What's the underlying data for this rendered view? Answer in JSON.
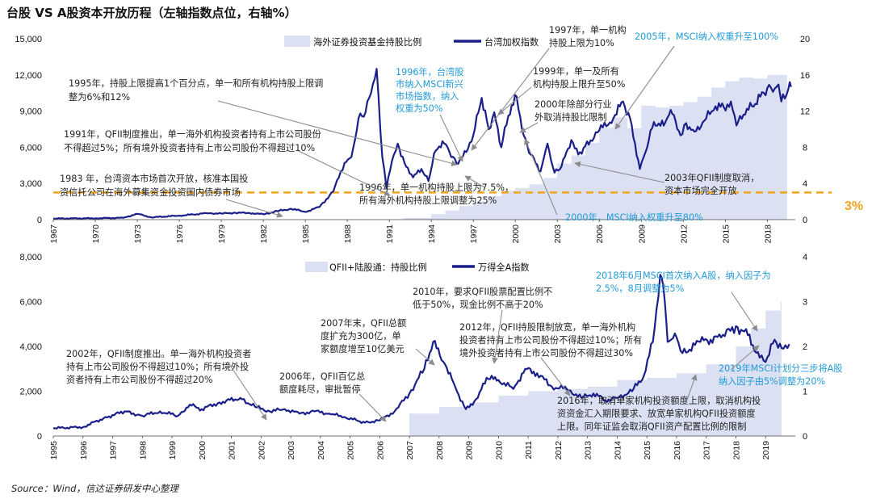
{
  "title": "台股 VS A股资本开放历程（左轴指数点位，右轴%）",
  "source": "Source：Wind，信达证券研发中心整理",
  "threshold_label": "3%",
  "colors": {
    "line": "#1b1f8a",
    "area": "#dbe1f3",
    "threshold": "#f0a51e",
    "arrow": "#8c8c8c",
    "blue_text": "#1f9ad6",
    "text": "#222222"
  },
  "chart_data": [
    {
      "type": "line",
      "title": "",
      "legend": [
        "海外证券投资基金持股比例",
        "台湾加权指数"
      ],
      "legend_position": "top-right",
      "x_ticks": [
        "1967",
        "1970",
        "1973",
        "1976",
        "1979",
        "1982",
        "1985",
        "1988",
        "1991",
        "1994",
        "1997",
        "2000",
        "2003",
        "2006",
        "2009",
        "2012",
        "2015",
        "2018"
      ],
      "xlim": [
        1967,
        2020
      ],
      "y_left_ticks": [
        "0",
        "3,000",
        "6,000",
        "9,000",
        "12,000",
        "15,000"
      ],
      "ylim_left": [
        0,
        15000
      ],
      "y_right_ticks": [
        "0",
        "4",
        "8",
        "12",
        "16",
        "20"
      ],
      "ylim_right": [
        0,
        20
      ],
      "threshold": 3,
      "series": [
        {
          "name": "台湾加权指数",
          "axis": "left",
          "points": [
            [
              1967,
              90
            ],
            [
              1970,
              110
            ],
            [
              1972,
              150
            ],
            [
              1973,
              480
            ],
            [
              1974,
              190
            ],
            [
              1976,
              330
            ],
            [
              1978,
              530
            ],
            [
              1979,
              500
            ],
            [
              1980,
              570
            ],
            [
              1981,
              550
            ],
            [
              1982,
              440
            ],
            [
              1983,
              700
            ],
            [
              1984,
              900
            ],
            [
              1985,
              640
            ],
            [
              1986,
              1040
            ],
            [
              1987,
              2340
            ],
            [
              1987.8,
              4700
            ],
            [
              1988.3,
              5200
            ],
            [
              1988.8,
              8400
            ],
            [
              1989.3,
              8900
            ],
            [
              1989.7,
              10500
            ],
            [
              1990.1,
              12500
            ],
            [
              1990.5,
              5200
            ],
            [
              1990.8,
              2600
            ],
            [
              1991.2,
              4900
            ],
            [
              1991.6,
              6300
            ],
            [
              1992.2,
              4400
            ],
            [
              1992.7,
              3500
            ],
            [
              1993.3,
              4200
            ],
            [
              1993.8,
              3200
            ],
            [
              1994.2,
              5500
            ],
            [
              1994.8,
              6500
            ],
            [
              1995.3,
              5600
            ],
            [
              1995.8,
              4700
            ],
            [
              1996.5,
              5600
            ],
            [
              1997,
              7000
            ],
            [
              1997.6,
              10100
            ],
            [
              1998.1,
              7500
            ],
            [
              1998.5,
              8900
            ],
            [
              1999,
              6000
            ],
            [
              1999.5,
              8600
            ],
            [
              2000.1,
              10200
            ],
            [
              2000.6,
              7000
            ],
            [
              2001.1,
              5400
            ],
            [
              2001.8,
              4000
            ],
            [
              2002.3,
              6300
            ],
            [
              2002.8,
              3900
            ],
            [
              2003.3,
              4400
            ],
            [
              2004,
              6600
            ],
            [
              2004.5,
              5400
            ],
            [
              2005,
              6100
            ],
            [
              2006,
              7400
            ],
            [
              2007,
              8400
            ],
            [
              2007.7,
              9800
            ],
            [
              2008.2,
              8400
            ],
            [
              2008.9,
              4200
            ],
            [
              2009.3,
              5600
            ],
            [
              2009.9,
              8100
            ],
            [
              2010.6,
              7800
            ],
            [
              2011.1,
              9100
            ],
            [
              2011.8,
              7000
            ],
            [
              2012.2,
              8000
            ],
            [
              2012.8,
              7300
            ],
            [
              2013.5,
              8200
            ],
            [
              2014.3,
              9400
            ],
            [
              2014.9,
              9300
            ],
            [
              2015.4,
              9800
            ],
            [
              2015.8,
              7800
            ],
            [
              2016.3,
              8700
            ],
            [
              2016.9,
              9400
            ],
            [
              2017.5,
              10200
            ],
            [
              2018,
              10900
            ],
            [
              2018.4,
              10600
            ],
            [
              2018.8,
              11200
            ],
            [
              2019,
              9800
            ],
            [
              2019.5,
              10800
            ],
            [
              2019.7,
              11000
            ]
          ]
        },
        {
          "name": "海外证券投资基金持股比例",
          "axis": "right",
          "points": [
            [
              1992,
              0.2
            ],
            [
              1994,
              0.6
            ],
            [
              1995,
              1.0
            ],
            [
              1996,
              1.5
            ],
            [
              1997,
              2.0
            ],
            [
              1998,
              2.6
            ],
            [
              1999,
              3.2
            ],
            [
              2000,
              3.5
            ],
            [
              2001,
              3.9
            ],
            [
              2002,
              4.6
            ],
            [
              2003,
              6.2
            ],
            [
              2004,
              7.1
            ],
            [
              2005,
              8.5
            ],
            [
              2006,
              10.2
            ],
            [
              2007,
              11.3
            ],
            [
              2008,
              10.1
            ],
            [
              2009,
              12.6
            ],
            [
              2010,
              12.4
            ],
            [
              2011,
              12.6
            ],
            [
              2012,
              13.0
            ],
            [
              2013,
              13.6
            ],
            [
              2014,
              14.6
            ],
            [
              2015,
              15.3
            ],
            [
              2016,
              15.7
            ],
            [
              2017,
              15.6
            ],
            [
              2018,
              16.0
            ],
            [
              2019,
              16.0
            ]
          ]
        }
      ],
      "annotations": [
        {
          "lines": [
            "1983 年，台湾资本市场首次开放，核准本国投",
            "资信托公司在海外募集资金投资国内债券市场"
          ],
          "color": "dark"
        },
        {
          "lines": [
            "1991年，QFII制度推出，单一海外机构投资者持有上市公司股份",
            "不得超过5%；所有境外投资者持有上市公司股份不得超过10%"
          ],
          "color": "dark"
        },
        {
          "lines": [
            "1995年，持股上限提高1个百分点，单一和所有机构持股上限调",
            "整为6%和12%"
          ],
          "color": "dark"
        },
        {
          "lines": [
            "1996年，台湾股",
            "市纳入MSCI新兴",
            "市场指数，纳入",
            "权重为50%"
          ],
          "color": "blue"
        },
        {
          "lines": [
            "1996年，单一机构持股上限为7.5%，",
            "所有海外机构持股上限调整为25%"
          ],
          "color": "dark"
        },
        {
          "lines": [
            "1997年，单一机构",
            "持股上限为10%"
          ],
          "color": "dark"
        },
        {
          "lines": [
            "1999年，单一及所有",
            "机构持股上限升至50%"
          ],
          "color": "dark"
        },
        {
          "lines": [
            "2000年除部分行业",
            "外取消持股比限制"
          ],
          "color": "dark"
        },
        {
          "lines": [
            "2005年，MSCI纳入权重升至100%"
          ],
          "color": "blue"
        },
        {
          "lines": [
            "2003年QFII制度取消，",
            "资本市场完全开放"
          ],
          "color": "dark"
        },
        {
          "lines": [
            "2000年，MSCI纳入权重升至80%"
          ],
          "color": "blue"
        }
      ]
    },
    {
      "type": "line",
      "title": "",
      "legend": [
        "QFII+陆股通：持股比例",
        "万得全A指数"
      ],
      "legend_position": "top",
      "x_ticks": [
        "1995",
        "1996",
        "1997",
        "1998",
        "1999",
        "2000",
        "2001",
        "2002",
        "2003",
        "2004",
        "2005",
        "2006",
        "2007",
        "2008",
        "2009",
        "2010",
        "2011",
        "2012",
        "2013",
        "2014",
        "2015",
        "2016",
        "2017",
        "2018",
        "2019"
      ],
      "xlim": [
        1995,
        2020
      ],
      "y_left_ticks": [
        "0",
        "2,000",
        "4,000",
        "6,000",
        "8,000"
      ],
      "ylim_left": [
        0,
        8000
      ],
      "y_right_ticks": [
        "0",
        "1",
        "2",
        "3",
        "4"
      ],
      "ylim_right": [
        0,
        4
      ],
      "series": [
        {
          "name": "万得全A指数",
          "axis": "left",
          "points": [
            [
              1995,
              350
            ],
            [
              1996,
              400
            ],
            [
              1996.7,
              800
            ],
            [
              1997.4,
              1100
            ],
            [
              1998,
              900
            ],
            [
              1998.6,
              1100
            ],
            [
              1999.2,
              900
            ],
            [
              1999.6,
              1400
            ],
            [
              2000,
              1200
            ],
            [
              2000.6,
              1500
            ],
            [
              2001.3,
              1700
            ],
            [
              2001.8,
              1300
            ],
            [
              2002.3,
              1100
            ],
            [
              2002.8,
              1200
            ],
            [
              2003.3,
              1000
            ],
            [
              2003.8,
              1100
            ],
            [
              2004.3,
              1000
            ],
            [
              2004.8,
              850
            ],
            [
              2005.5,
              600
            ],
            [
              2006,
              700
            ],
            [
              2006.5,
              1100
            ],
            [
              2007,
              1900
            ],
            [
              2007.5,
              3000
            ],
            [
              2007.8,
              4200
            ],
            [
              2008.2,
              3200
            ],
            [
              2008.6,
              2000
            ],
            [
              2008.9,
              1200
            ],
            [
              2009.3,
              1700
            ],
            [
              2009.6,
              2600
            ],
            [
              2010,
              2500
            ],
            [
              2010.5,
              2100
            ],
            [
              2010.9,
              3000
            ],
            [
              2011.3,
              2800
            ],
            [
              2011.8,
              2200
            ],
            [
              2012.3,
              2100
            ],
            [
              2012.8,
              1700
            ],
            [
              2013.2,
              1900
            ],
            [
              2013.6,
              1600
            ],
            [
              2014,
              1700
            ],
            [
              2014.5,
              2000
            ],
            [
              2014.9,
              2700
            ],
            [
              2015.2,
              4200
            ],
            [
              2015.45,
              7200
            ],
            [
              2015.55,
              6700
            ],
            [
              2015.7,
              4200
            ],
            [
              2016,
              4400
            ],
            [
              2016.2,
              3700
            ],
            [
              2016.8,
              4200
            ],
            [
              2017.5,
              4400
            ],
            [
              2018,
              4900
            ],
            [
              2018.4,
              4500
            ],
            [
              2018.8,
              3500
            ],
            [
              2019,
              3300
            ],
            [
              2019.3,
              4300
            ],
            [
              2019.6,
              3900
            ],
            [
              2019.8,
              4100
            ]
          ]
        },
        {
          "name": "QFII+陆股通：持股比例",
          "axis": "right",
          "points": [
            [
              2007,
              0.5
            ],
            [
              2008,
              0.65
            ],
            [
              2009,
              0.75
            ],
            [
              2010,
              0.9
            ],
            [
              2011,
              1.0
            ],
            [
              2012,
              1.05
            ],
            [
              2013,
              1.1
            ],
            [
              2014,
              1.25
            ],
            [
              2015,
              1.3
            ],
            [
              2016,
              1.4
            ],
            [
              2017,
              1.6
            ],
            [
              2018,
              2.0
            ],
            [
              2018.5,
              2.4
            ],
            [
              2019,
              2.8
            ],
            [
              2019.5,
              3.0
            ]
          ]
        }
      ],
      "annotations": [
        {
          "lines": [
            "2002年，QFII制度推出。单一海外机构投资者",
            "持有上市公司股份不得超过10%；所有境外投",
            "资者持有上市公司股份不得超过20%"
          ],
          "color": "dark"
        },
        {
          "lines": [
            "2006年，QFII百亿总",
            "额度耗尽，审批暂停"
          ],
          "color": "dark"
        },
        {
          "lines": [
            "2007年末，QFII总额",
            "度扩充为300亿，单",
            "家额度增至10亿美元"
          ],
          "color": "dark"
        },
        {
          "lines": [
            "2010年，要求QFII股票配置比例不",
            "低于50%，现金比例不高于20%"
          ],
          "color": "dark"
        },
        {
          "lines": [
            "2012年，QFII持股限制放宽，单一海外机构",
            "投资者持有上市公司股份不得超过10%；所有",
            "境外投资者持有上市公司股份不得超过30%"
          ],
          "color": "dark"
        },
        {
          "lines": [
            "2018年6月MSCI首次纳入A股，纳入因子为",
            "2.5%，8月调整为5%"
          ],
          "color": "blue"
        },
        {
          "lines": [
            "2019年MSCI计划分三步将A股",
            "纳入因子由5%调整为20%"
          ],
          "color": "blue"
        },
        {
          "lines": [
            "2016年，取消单家机构投资额度上限，取消机构投",
            "资资金汇入期限要求、放宽单家机构QFII投资额度",
            "上限。同年证监会取消QFII资产配置比例的限制"
          ],
          "color": "dark"
        }
      ]
    }
  ]
}
